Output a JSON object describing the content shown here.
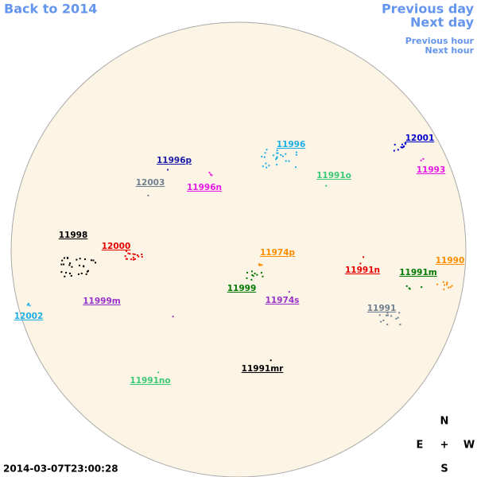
{
  "nav": {
    "back": "Back to 2014",
    "previous_day": "Previous day",
    "next_day": "Next day",
    "previous_hour": "Previous hour",
    "next_hour": "Next hour"
  },
  "regions": [
    {
      "label": "12001",
      "color": "#0000cc"
    },
    {
      "label": "11996",
      "color": "#1eaee6"
    },
    {
      "label": "11996p",
      "color": "#1a1aa8"
    },
    {
      "label": "11993",
      "color": "#e619e6"
    },
    {
      "label": "12003",
      "color": "#708090"
    },
    {
      "label": "11996n",
      "color": "#e619e6"
    },
    {
      "label": "11991o",
      "color": "#3cc878"
    },
    {
      "label": "11998",
      "color": "#000000"
    },
    {
      "label": "12000",
      "color": "#e60000"
    },
    {
      "label": "11974p",
      "color": "#ff8c00"
    },
    {
      "label": "11990",
      "color": "#ff8c00"
    },
    {
      "label": "11991n",
      "color": "#e60000"
    },
    {
      "label": "11991m",
      "color": "#007800"
    },
    {
      "label": "11999",
      "color": "#007800"
    },
    {
      "label": "11974s",
      "color": "#9932cc"
    },
    {
      "label": "11999m",
      "color": "#9932cc"
    },
    {
      "label": "11991",
      "color": "#708090"
    },
    {
      "label": "12002",
      "color": "#1eaee6"
    },
    {
      "label": "11991mr",
      "color": "#000000"
    },
    {
      "label": "11991no",
      "color": "#3cc878"
    }
  ],
  "compass": {
    "n": "N",
    "e": "E",
    "center": "+",
    "w": "W",
    "s": "S"
  },
  "timestamp": "2014-03-07T23:00:28"
}
